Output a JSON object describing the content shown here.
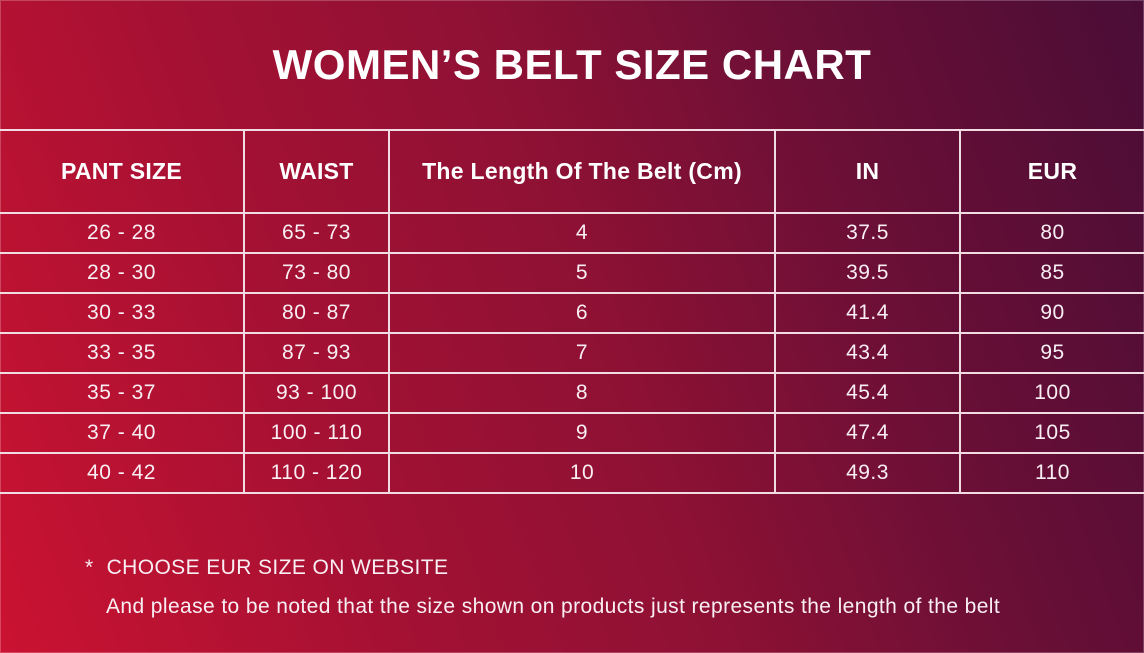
{
  "title": "WOMEN’S BELT SIZE CHART",
  "chart_data": {
    "type": "table",
    "title": "WOMEN’S BELT SIZE CHART",
    "columns": [
      "PANT SIZE",
      "WAIST",
      "The Length Of The Belt (Cm)",
      "IN",
      "EUR"
    ],
    "rows": [
      [
        "26 - 28",
        "65 - 73",
        "4",
        "37.5",
        "80"
      ],
      [
        "28 - 30",
        "73 - 80",
        "5",
        "39.5",
        "85"
      ],
      [
        "30 - 33",
        "80 - 87",
        "6",
        "41.4",
        "90"
      ],
      [
        "33 - 35",
        "87 - 93",
        "7",
        "43.4",
        "95"
      ],
      [
        "35 - 37",
        "93 - 100",
        "8",
        "45.4",
        "100"
      ],
      [
        "37 - 40",
        "100 - 110",
        "9",
        "47.4",
        "105"
      ],
      [
        "40 - 42",
        "110 - 120",
        "10",
        "49.3",
        "110"
      ]
    ],
    "legend": "none",
    "grid": "white cell borders on gradient background"
  },
  "notes": {
    "marker": "*",
    "line1": "CHOOSE EUR SIZE ON WEBSITE",
    "line2": "And please to be noted that the size shown on products just represents the length of the belt"
  },
  "colors": {
    "gradient_start": "#cb1232",
    "gradient_mid": "#8e1134",
    "gradient_end": "#4a0d36",
    "grid_line": "#f2dce3",
    "title_text": "#ffffff",
    "cell_text": "#f9eef3"
  }
}
